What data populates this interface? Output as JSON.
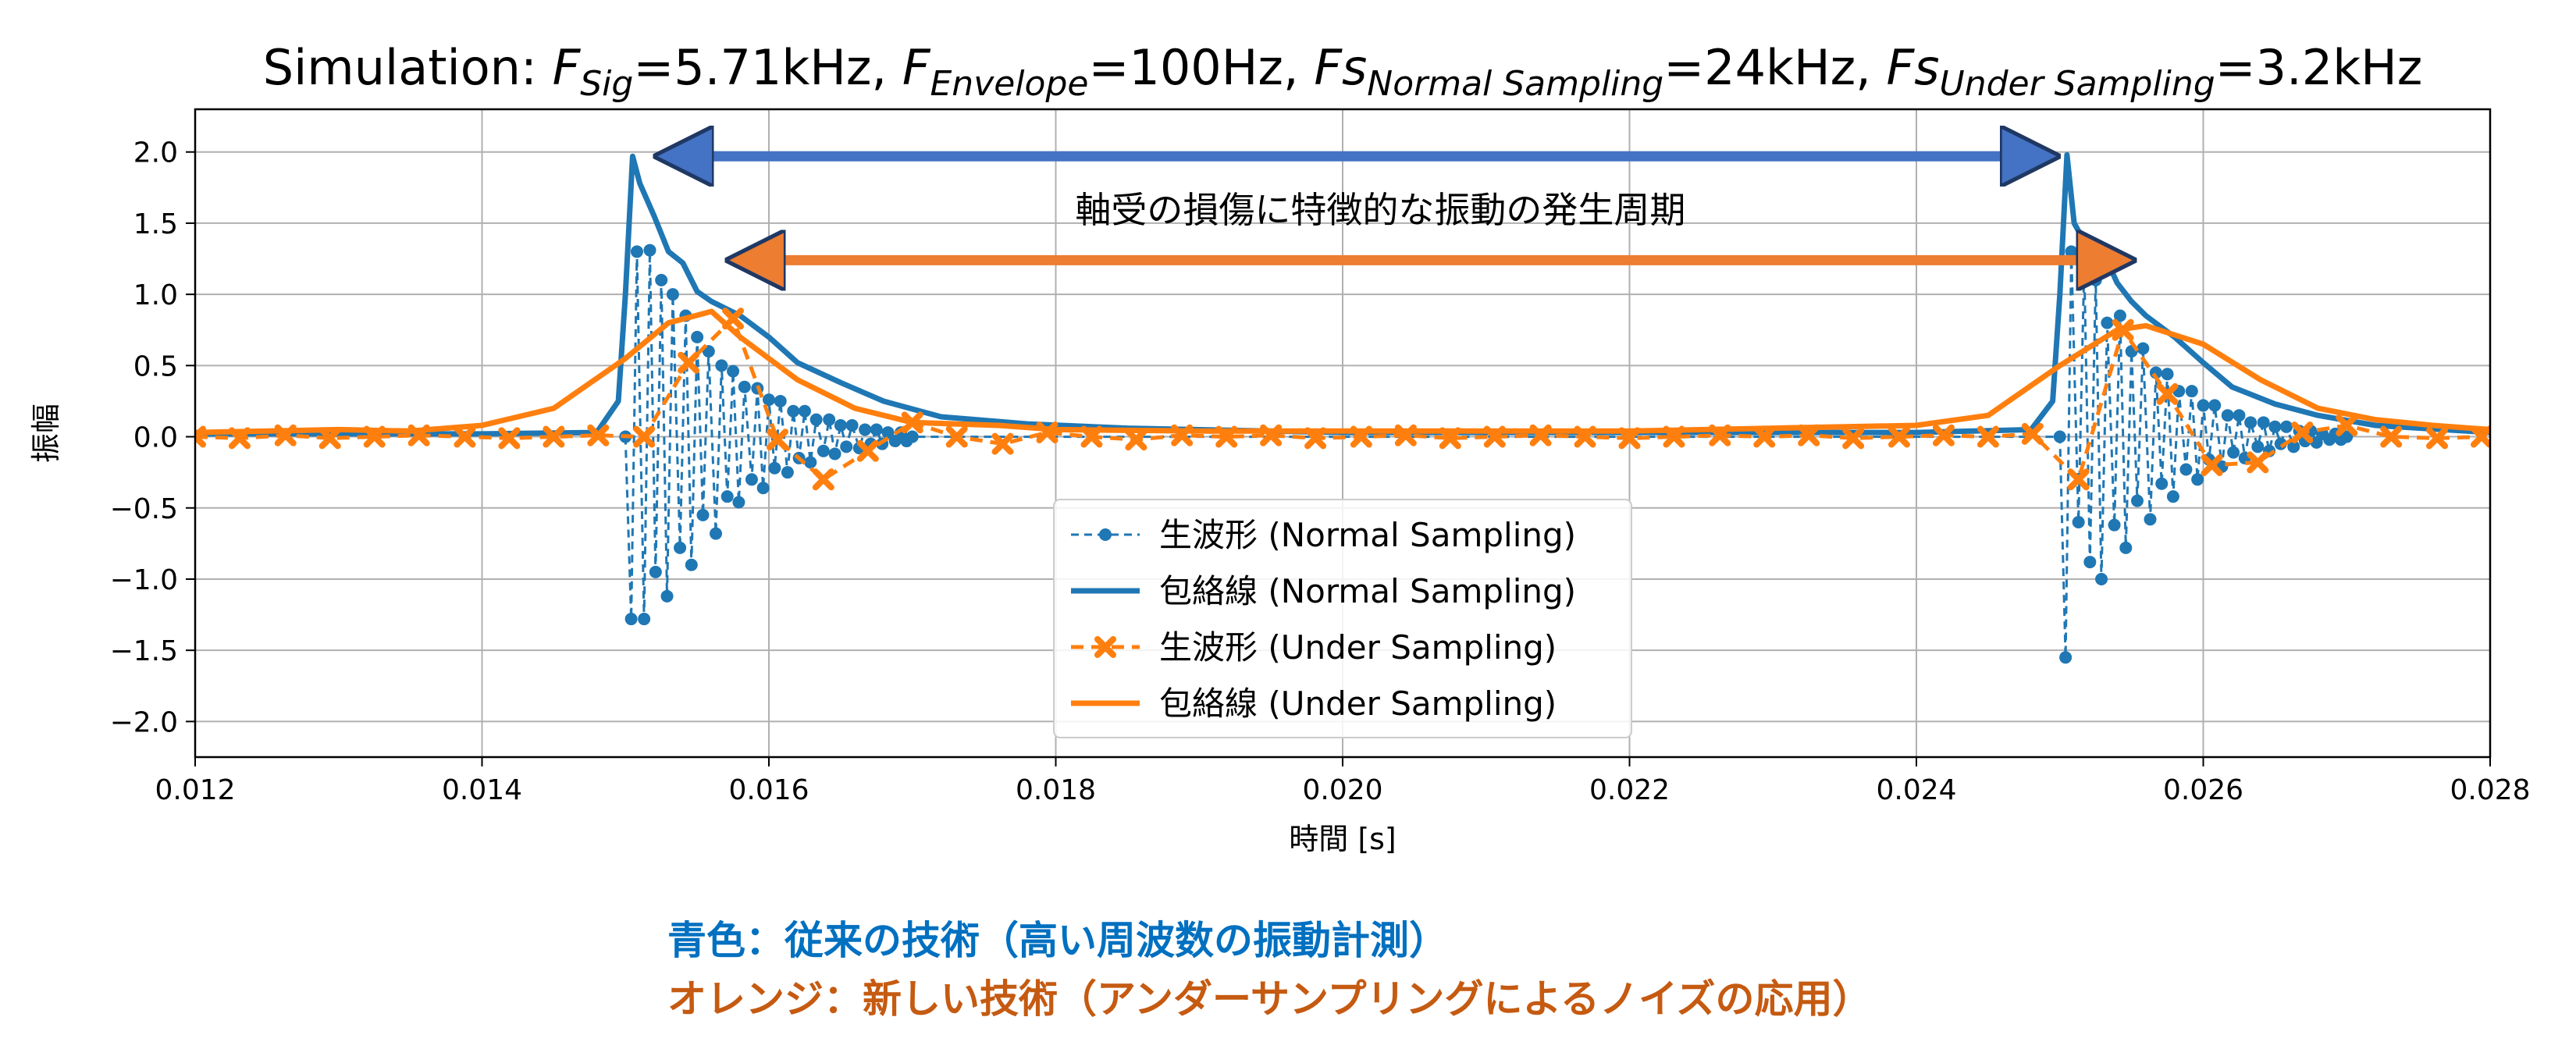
{
  "chart_data": {
    "type": "line",
    "title_parts": [
      {
        "text": "Simulation: "
      },
      {
        "text": "F",
        "italic": true
      },
      {
        "text": "Sig",
        "italic": true,
        "sub": true
      },
      {
        "text": "=5.71kHz, "
      },
      {
        "text": "F",
        "italic": true
      },
      {
        "text": "Envelope",
        "italic": true,
        "sub": true
      },
      {
        "text": "=100Hz, "
      },
      {
        "text": "Fs",
        "italic": true
      },
      {
        "text": "Normal Sampling",
        "italic": true,
        "sub": true
      },
      {
        "text": "=24kHz, "
      },
      {
        "text": "Fs",
        "italic": true
      },
      {
        "text": "Under Sampling",
        "italic": true,
        "sub": true
      },
      {
        "text": "=3.2kHz"
      }
    ],
    "xlabel": "時間 [s]",
    "ylabel": "振幅",
    "xlim": [
      0.012,
      0.028
    ],
    "ylim": [
      -2.25,
      2.3
    ],
    "xticks": [
      0.012,
      0.014,
      0.016,
      0.018,
      0.02,
      0.022,
      0.024,
      0.026,
      0.028
    ],
    "xtick_labels": [
      "0.012",
      "0.014",
      "0.016",
      "0.018",
      "0.020",
      "0.022",
      "0.024",
      "0.026",
      "0.028"
    ],
    "yticks": [
      -2.0,
      -1.5,
      -1.0,
      -0.5,
      0.0,
      0.5,
      1.0,
      1.5,
      2.0
    ],
    "ytick_labels": [
      "−2.0",
      "−1.5",
      "−1.0",
      "−0.5",
      "0.0",
      "0.5",
      "1.0",
      "1.5",
      "2.0"
    ],
    "grid": true,
    "legend_position": "lower-center",
    "series": [
      {
        "name": "生波形 (Normal Sampling)",
        "style": "dashed-dot-marker",
        "color": "#1f77b4",
        "x": [
          0.015,
          0.01504,
          0.01508,
          0.01513,
          0.01517,
          0.01521,
          0.01525,
          0.01529,
          0.01533,
          0.01538,
          0.01542,
          0.01546,
          0.0155,
          0.01554,
          0.01558,
          0.01563,
          0.01567,
          0.01571,
          0.01575,
          0.01579,
          0.01583,
          0.01588,
          0.01592,
          0.01596,
          0.016,
          0.01604,
          0.01608,
          0.01613,
          0.01617,
          0.01621,
          0.01625,
          0.01629,
          0.01633,
          0.01638,
          0.01642,
          0.01646,
          0.0165,
          0.01654,
          0.01658,
          0.01663,
          0.01667,
          0.01671,
          0.01675,
          0.01679,
          0.01683,
          0.01688,
          0.01692,
          0.01696,
          0.017,
          0.025,
          0.02504,
          0.02508,
          0.02513,
          0.02517,
          0.02521,
          0.02525,
          0.02529,
          0.02533,
          0.02538,
          0.02542,
          0.02546,
          0.0255,
          0.02554,
          0.02558,
          0.02563,
          0.02567,
          0.02571,
          0.02575,
          0.02579,
          0.02583,
          0.02588,
          0.02592,
          0.02596,
          0.026,
          0.02604,
          0.02608,
          0.02613,
          0.02617,
          0.02621,
          0.02625,
          0.02629,
          0.02633,
          0.02638,
          0.02642,
          0.02646,
          0.0265,
          0.02654,
          0.02658,
          0.02663,
          0.02667,
          0.02671,
          0.02675,
          0.02679,
          0.02683,
          0.02688,
          0.02692,
          0.02696,
          0.027
        ],
        "y": [
          0.0,
          -1.28,
          1.3,
          -1.28,
          1.31,
          -0.95,
          1.1,
          -1.12,
          1.0,
          -0.78,
          0.85,
          -0.9,
          0.7,
          -0.55,
          0.6,
          -0.68,
          0.5,
          -0.42,
          0.46,
          -0.46,
          0.35,
          -0.3,
          0.34,
          -0.36,
          0.26,
          -0.22,
          0.25,
          -0.25,
          0.18,
          -0.15,
          0.18,
          -0.18,
          0.12,
          -0.1,
          0.12,
          -0.12,
          0.08,
          -0.07,
          0.08,
          -0.08,
          0.05,
          -0.05,
          0.05,
          -0.05,
          0.03,
          -0.03,
          0.03,
          -0.03,
          0.0,
          0.0,
          -1.55,
          1.3,
          -0.6,
          1.2,
          -0.88,
          1.1,
          -1.0,
          0.8,
          -0.62,
          0.85,
          -0.78,
          0.6,
          -0.45,
          0.62,
          -0.58,
          0.45,
          -0.33,
          0.44,
          -0.42,
          0.32,
          -0.23,
          0.32,
          -0.3,
          0.22,
          -0.16,
          0.22,
          -0.21,
          0.15,
          -0.11,
          0.15,
          -0.15,
          0.1,
          -0.07,
          0.1,
          -0.1,
          0.07,
          -0.05,
          0.07,
          -0.07,
          0.04,
          -0.03,
          0.04,
          -0.04,
          0.02,
          -0.02,
          0.02,
          -0.02,
          0.0
        ]
      },
      {
        "name": "包絡線 (Normal Sampling)",
        "style": "solid",
        "color": "#1f77b4",
        "x": [
          0.012,
          0.013,
          0.014,
          0.0148,
          0.01495,
          0.015,
          0.01505,
          0.0151,
          0.0152,
          0.0153,
          0.0154,
          0.0155,
          0.0156,
          0.0158,
          0.016,
          0.0162,
          0.0165,
          0.0168,
          0.0172,
          0.0178,
          0.0185,
          0.02,
          0.022,
          0.024,
          0.0248,
          0.02495,
          0.025,
          0.02505,
          0.0251,
          0.0252,
          0.0253,
          0.0254,
          0.0255,
          0.0256,
          0.0258,
          0.026,
          0.0262,
          0.0265,
          0.0268,
          0.0272,
          0.028
        ],
        "y": [
          0.02,
          0.02,
          0.02,
          0.03,
          0.25,
          1.0,
          1.97,
          1.78,
          1.55,
          1.3,
          1.22,
          1.02,
          0.95,
          0.85,
          0.7,
          0.52,
          0.38,
          0.25,
          0.14,
          0.09,
          0.06,
          0.03,
          0.03,
          0.03,
          0.05,
          0.25,
          1.0,
          1.98,
          1.5,
          1.32,
          1.3,
          1.08,
          0.95,
          0.85,
          0.7,
          0.52,
          0.35,
          0.23,
          0.15,
          0.08,
          0.03
        ]
      },
      {
        "name": "生波形 (Under Sampling)",
        "style": "dashed-x-marker",
        "color": "#ff7f0e",
        "x": [
          0.012,
          0.01231,
          0.01263,
          0.01294,
          0.01325,
          0.01356,
          0.01388,
          0.01419,
          0.0145,
          0.01481,
          0.01513,
          0.01544,
          0.01575,
          0.01606,
          0.01638,
          0.01669,
          0.017,
          0.01731,
          0.01763,
          0.01794,
          0.01825,
          0.01856,
          0.01888,
          0.01919,
          0.0195,
          0.01981,
          0.02013,
          0.02044,
          0.02075,
          0.02106,
          0.02138,
          0.02169,
          0.022,
          0.02231,
          0.02263,
          0.02294,
          0.02325,
          0.02356,
          0.02388,
          0.02419,
          0.0245,
          0.02481,
          0.02513,
          0.02544,
          0.02575,
          0.02606,
          0.02638,
          0.02669,
          0.027,
          0.02731,
          0.02763,
          0.02794
        ],
        "y": [
          0.0,
          -0.01,
          0.01,
          -0.01,
          0.0,
          0.01,
          0.0,
          -0.01,
          0.0,
          0.01,
          0.0,
          0.52,
          0.83,
          -0.02,
          -0.3,
          -0.1,
          0.1,
          0.0,
          -0.05,
          0.03,
          0.0,
          -0.02,
          0.01,
          0.0,
          0.01,
          -0.01,
          0.0,
          0.01,
          -0.01,
          0.0,
          0.01,
          0.0,
          -0.01,
          0.0,
          0.01,
          0.0,
          0.01,
          -0.01,
          0.0,
          0.01,
          0.0,
          0.02,
          -0.3,
          0.75,
          0.3,
          -0.2,
          -0.18,
          0.03,
          0.08,
          0.0,
          -0.01,
          0.0
        ]
      },
      {
        "name": "包絡線 (Under Sampling)",
        "style": "solid",
        "color": "#ff7f0e",
        "x": [
          0.012,
          0.013,
          0.0135,
          0.014,
          0.0145,
          0.015,
          0.0153,
          0.0156,
          0.0158,
          0.0162,
          0.0166,
          0.017,
          0.0176,
          0.018,
          0.019,
          0.02,
          0.021,
          0.022,
          0.023,
          0.024,
          0.0245,
          0.025,
          0.0254,
          0.0256,
          0.026,
          0.0264,
          0.0268,
          0.0272,
          0.0276,
          0.028
        ],
        "y": [
          0.03,
          0.05,
          0.04,
          0.08,
          0.2,
          0.55,
          0.8,
          0.88,
          0.7,
          0.4,
          0.2,
          0.1,
          0.08,
          0.05,
          0.04,
          0.04,
          0.04,
          0.04,
          0.06,
          0.08,
          0.15,
          0.5,
          0.75,
          0.78,
          0.65,
          0.4,
          0.2,
          0.12,
          0.08,
          0.05
        ]
      }
    ],
    "annotations": {
      "label": "軸受の損傷に特徴的な振動の発生周期",
      "blue_arrow": {
        "x_start": 0.0151,
        "x_end": 0.0251,
        "y": 1.97,
        "color": "#4472c4"
      },
      "orange_arrow": {
        "x_start": 0.0156,
        "x_end": 0.02563,
        "y": 1.24,
        "color": "#ed7d31"
      }
    }
  },
  "captions": {
    "blue": "青色：従来の技術（高い周波数の振動計測）",
    "orange": "オレンジ：新しい技術（アンダーサンプリングによるノイズの応用）"
  }
}
